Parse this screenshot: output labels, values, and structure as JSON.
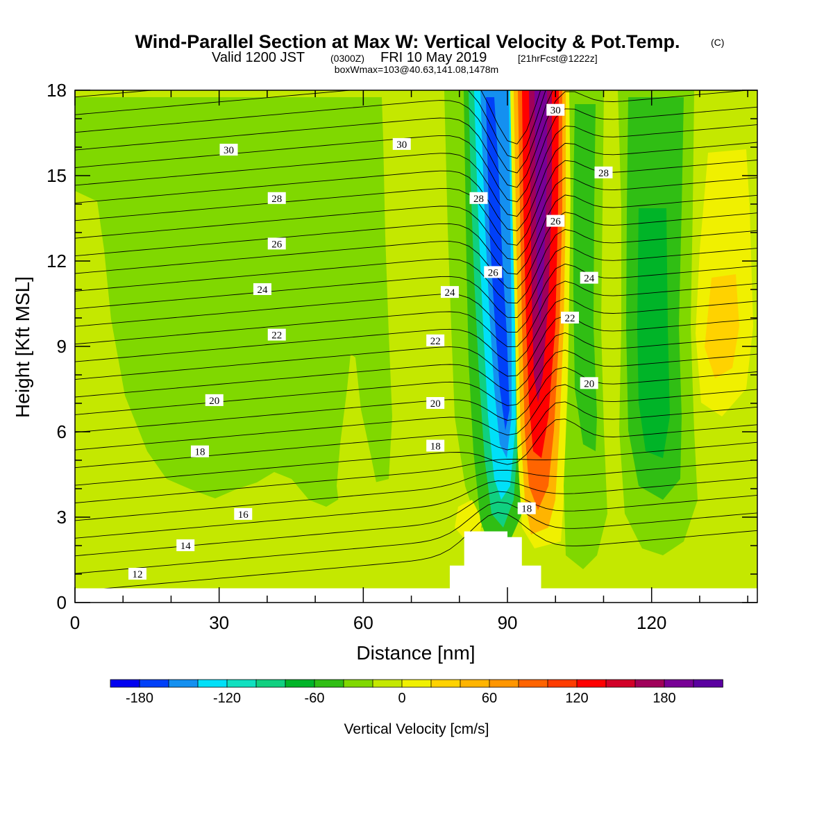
{
  "title": {
    "main": "Wind-Parallel Section at Max W: Vertical Velocity & Pot.Temp.",
    "copyright": "(C)",
    "valid_prefix": "Valid 1200 JST",
    "valid_utc": "(0300Z)",
    "valid_date": "FRI 10 May 2019",
    "forecast": "[21hrFcst@1222z]",
    "box_info": "boxWmax=103@40.63,141.08,1478m"
  },
  "chart_data": {
    "type": "heatmap",
    "xlabel": "Distance [nm]",
    "ylabel": "Height [Kft MSL]",
    "xlim": [
      0,
      142
    ],
    "ylim": [
      0,
      18
    ],
    "x_ticks": [
      0,
      30,
      60,
      90,
      120
    ],
    "y_ticks": [
      0,
      3,
      6,
      9,
      12,
      15,
      18
    ],
    "colorbar": {
      "label": "Vertical Velocity [cm/s]",
      "levels": [
        -200,
        -180,
        -160,
        -140,
        -120,
        -100,
        -80,
        -60,
        -40,
        -20,
        0,
        20,
        40,
        60,
        80,
        100,
        120,
        140,
        160,
        180,
        200,
        220
      ],
      "tick_values": [
        -180,
        -120,
        -60,
        0,
        60,
        120,
        180
      ],
      "colors": [
        "#0000f0",
        "#0040f8",
        "#1490f0",
        "#00e0f8",
        "#10e0c0",
        "#10d080",
        "#00b428",
        "#30be14",
        "#80d800",
        "#c4e800",
        "#f0f000",
        "#ffd200",
        "#ffb400",
        "#ff9600",
        "#ff6400",
        "#ff3c00",
        "#ff0000",
        "#d20028",
        "#a0005a",
        "#780096",
        "#5a00a0"
      ]
    },
    "vertical_velocity_regions": [
      {
        "value_cm_s": -40,
        "region": "broad weak descent over x 0-60, y 2-18"
      },
      {
        "value_cm_s": -200,
        "region": "narrow descent core near x 88, y 6-18"
      },
      {
        "value_cm_s": 220,
        "region": "narrow ascent core near x 96, y 3-18"
      },
      {
        "value_cm_s": 40,
        "region": "weak ascent near x 135, y 6-12"
      }
    ],
    "terrain": [
      [
        71,
        0.5
      ],
      [
        78,
        1.3
      ],
      [
        81,
        2.5
      ],
      [
        90,
        2.5
      ],
      [
        93,
        2.3
      ],
      [
        97,
        1.3
      ],
      [
        100,
        0.5
      ]
    ],
    "contours": [
      {
        "label": "12",
        "label_at": [
          13,
          1.0
        ]
      },
      {
        "label": "14",
        "label_at": [
          23,
          2.0
        ]
      },
      {
        "label": "16",
        "label_at": [
          35,
          3.1
        ]
      },
      {
        "label": "18",
        "label_at": [
          26,
          5.3
        ]
      },
      {
        "label": "18",
        "label_at": [
          75,
          5.5
        ]
      },
      {
        "label": "18",
        "label_at": [
          94,
          3.3
        ]
      },
      {
        "label": "20",
        "label_at": [
          29,
          7.1
        ]
      },
      {
        "label": "20",
        "label_at": [
          75,
          7.0
        ]
      },
      {
        "label": "20",
        "label_at": [
          107,
          7.7
        ]
      },
      {
        "label": "22",
        "label_at": [
          42,
          9.4
        ]
      },
      {
        "label": "22",
        "label_at": [
          75,
          9.2
        ]
      },
      {
        "label": "22",
        "label_at": [
          103,
          10.0
        ]
      },
      {
        "label": "24",
        "label_at": [
          39,
          11.0
        ]
      },
      {
        "label": "24",
        "label_at": [
          78,
          10.9
        ]
      },
      {
        "label": "24",
        "label_at": [
          107,
          11.4
        ]
      },
      {
        "label": "26",
        "label_at": [
          42,
          12.6
        ]
      },
      {
        "label": "26",
        "label_at": [
          87,
          11.6
        ]
      },
      {
        "label": "26",
        "label_at": [
          100,
          13.4
        ]
      },
      {
        "label": "28",
        "label_at": [
          42,
          14.2
        ]
      },
      {
        "label": "28",
        "label_at": [
          84,
          14.2
        ]
      },
      {
        "label": "28",
        "label_at": [
          110,
          15.1
        ]
      },
      {
        "label": "30",
        "label_at": [
          32,
          15.9
        ]
      },
      {
        "label": "30",
        "label_at": [
          68,
          16.1
        ]
      },
      {
        "label": "30",
        "label_at": [
          100,
          17.3
        ]
      }
    ]
  }
}
